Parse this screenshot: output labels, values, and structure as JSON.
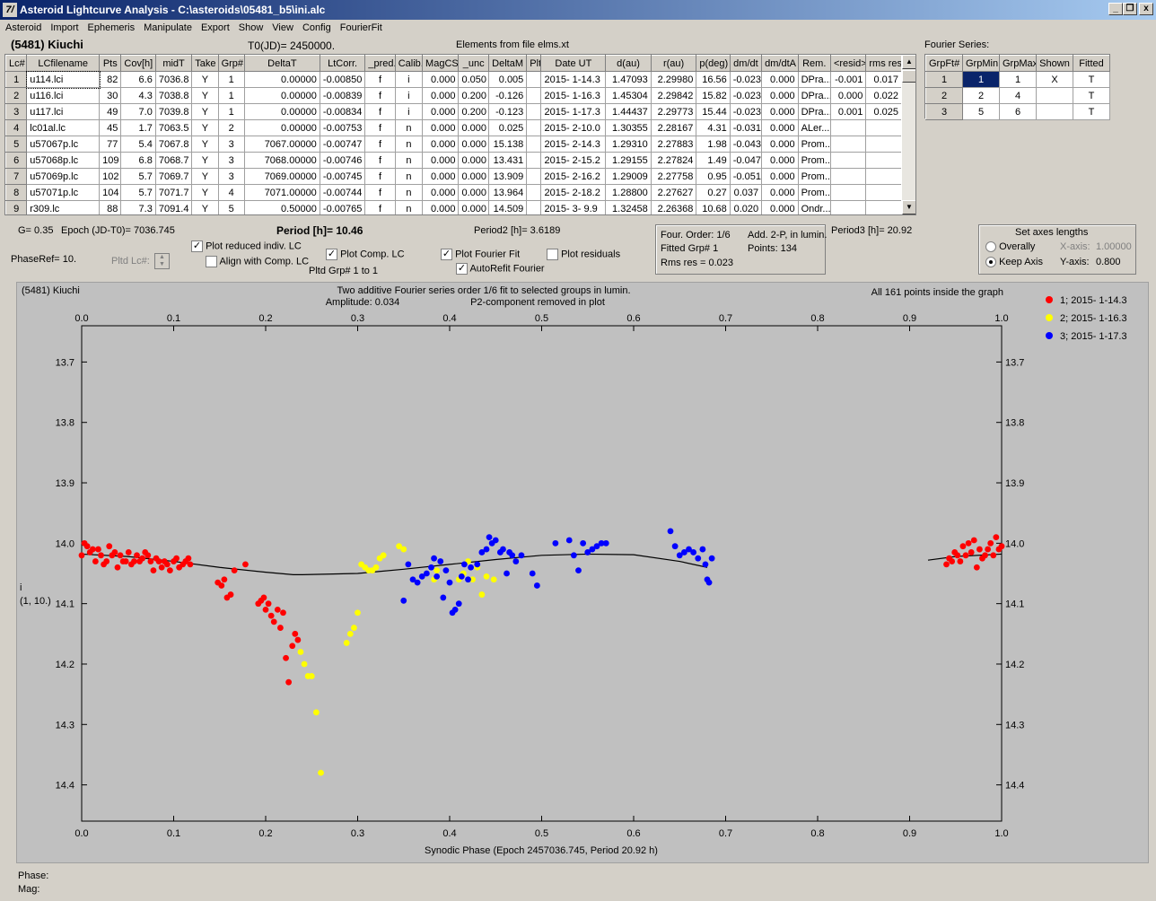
{
  "window": {
    "title": "Asteroid Lightcurve Analysis - C:\\asteroids\\05481_b5\\ini.alc",
    "icon_text": "7/",
    "controls": [
      "_",
      "❐",
      "x"
    ]
  },
  "menu": [
    "Asteroid",
    "Import",
    "Ephemeris",
    "Manipulate",
    "Export",
    "Show",
    "View",
    "Config",
    "FourierFit"
  ],
  "header": {
    "asteroid": "(5481) Kiuchi",
    "t0": "T0(JD)= 2450000.",
    "elements": "Elements from file elms.xt"
  },
  "lc_table": {
    "columns": [
      "Lc#",
      "LCfilename",
      "Pts",
      "Cov[h]",
      "midT",
      "Take",
      "Grp#",
      "DeltaT",
      "LtCorr.",
      "_pred.",
      "Calib.",
      "MagCS",
      "_unc",
      "DeltaM",
      "Plt",
      "Date UT",
      "d(au)",
      "r(au)",
      "p(deg)",
      "dm/dt",
      "dm/dtA",
      "Rem.",
      "<resid>",
      "rms res"
    ],
    "rows": [
      [
        "1",
        "u114.lci",
        "82",
        "6.6",
        "7036.8",
        "Y",
        "1",
        "0.00000",
        "-0.00850",
        "f",
        "i",
        "0.000",
        "0.050",
        "0.005",
        "",
        "2015- 1-14.3",
        "1.47093",
        "2.29980",
        "16.56",
        "-0.023",
        "0.000",
        "DPra...",
        "-0.001",
        "0.017"
      ],
      [
        "2",
        "u116.lci",
        "30",
        "4.3",
        "7038.8",
        "Y",
        "1",
        "0.00000",
        "-0.00839",
        "f",
        "i",
        "0.000",
        "0.200",
        "-0.126",
        "",
        "2015- 1-16.3",
        "1.45304",
        "2.29842",
        "15.82",
        "-0.023",
        "0.000",
        "DPra...",
        "0.000",
        "0.022"
      ],
      [
        "3",
        "u117.lci",
        "49",
        "7.0",
        "7039.8",
        "Y",
        "1",
        "0.00000",
        "-0.00834",
        "f",
        "i",
        "0.000",
        "0.200",
        "-0.123",
        "",
        "2015- 1-17.3",
        "1.44437",
        "2.29773",
        "15.44",
        "-0.023",
        "0.000",
        "DPra...",
        "0.001",
        "0.025"
      ],
      [
        "4",
        "lc01al.lc",
        "45",
        "1.7",
        "7063.5",
        "Y",
        "2",
        "0.00000",
        "-0.00753",
        "f",
        "n",
        "0.000",
        "0.000",
        "0.025",
        "",
        "2015- 2-10.0",
        "1.30355",
        "2.28167",
        "4.31",
        "-0.031",
        "0.000",
        "ALer...",
        "",
        ""
      ],
      [
        "5",
        "u57067p.lc",
        "77",
        "5.4",
        "7067.8",
        "Y",
        "3",
        "7067.00000",
        "-0.00747",
        "f",
        "n",
        "0.000",
        "0.000",
        "15.138",
        "",
        "2015- 2-14.3",
        "1.29310",
        "2.27883",
        "1.98",
        "-0.043",
        "0.000",
        "Prom...",
        "",
        ""
      ],
      [
        "6",
        "u57068p.lc",
        "109",
        "6.8",
        "7068.7",
        "Y",
        "3",
        "7068.00000",
        "-0.00746",
        "f",
        "n",
        "0.000",
        "0.000",
        "13.431",
        "",
        "2015- 2-15.2",
        "1.29155",
        "2.27824",
        "1.49",
        "-0.047",
        "0.000",
        "Prom...",
        "",
        ""
      ],
      [
        "7",
        "u57069p.lc",
        "102",
        "5.7",
        "7069.7",
        "Y",
        "3",
        "7069.00000",
        "-0.00745",
        "f",
        "n",
        "0.000",
        "0.000",
        "13.909",
        "",
        "2015- 2-16.2",
        "1.29009",
        "2.27758",
        "0.95",
        "-0.051",
        "0.000",
        "Prom...",
        "",
        ""
      ],
      [
        "8",
        "u57071p.lc",
        "104",
        "5.7",
        "7071.7",
        "Y",
        "4",
        "7071.00000",
        "-0.00744",
        "f",
        "n",
        "0.000",
        "0.000",
        "13.964",
        "",
        "2015- 2-18.2",
        "1.28800",
        "2.27627",
        "0.27",
        "0.037",
        "0.000",
        "Prom...",
        "",
        ""
      ],
      [
        "9",
        "r309.lc",
        "88",
        "7.3",
        "7091.4",
        "Y",
        "5",
        "0.50000",
        "-0.00765",
        "f",
        "n",
        "0.000",
        "0.000",
        "14.509",
        "",
        "2015- 3- 9.9",
        "1.32458",
        "2.26368",
        "10.68",
        "0.020",
        "0.000",
        "Ondr...",
        "",
        ""
      ]
    ]
  },
  "fourier": {
    "title": "Fourier Series:",
    "columns": [
      "GrpFt#",
      "GrpMin",
      "GrpMax",
      "Shown",
      "Fitted"
    ],
    "rows": [
      [
        "1",
        "1",
        "1",
        "X",
        "T"
      ],
      [
        "2",
        "2",
        "4",
        "",
        "T"
      ],
      [
        "3",
        "5",
        "6",
        "",
        "T"
      ]
    ]
  },
  "params": {
    "g": "G= 0.35",
    "epoch": "Epoch (JD-T0)= 7036.745",
    "period": "Period [h]= 10.46",
    "period2": "Period2 [h]= 3.6189",
    "period3": "Period3 [h]= 20.92",
    "phaseref": "PhaseRef= 10.",
    "pltd_lc": "Pltd Lc#:",
    "plot_reduced": "Plot reduced indiv. LC",
    "align_comp": "Align with Comp. LC",
    "plot_comp": "Plot Comp. LC",
    "pltd_grp": "Pltd Grp#  1  to   1",
    "plot_fourier": "Plot Fourier Fit",
    "autorefit": "AutoRefit Fourier",
    "plot_residuals": "Plot residuals",
    "four_order": "Four. Order:  1/6",
    "add2p": "Add. 2-P, in lumin.",
    "fitted_grp": "Fitted Grp# 1",
    "points": "Points: 134",
    "rms": "Rms res    = 0.023",
    "axes_title": "Set axes lengths",
    "overally": "Overally",
    "keep_axis": "Keep Axis",
    "xaxis_lbl": "X-axis:",
    "xaxis_val": "1.00000",
    "yaxis_lbl": "Y-axis:",
    "yaxis_val": "0.800"
  },
  "status": {
    "phase": "Phase:",
    "mag": "Mag:"
  },
  "chart_data": {
    "type": "scatter",
    "title": "(5481) Kiuchi",
    "subtitle": "Two additive Fourier series order 1/6 fit to selected groups in lumin.",
    "amplitude": "Amplitude: 0.034",
    "p2note": "P2-component removed in plot",
    "inside": "All 161 points inside the graph",
    "xlabel": "Synodic Phase (Epoch 2457036.745, Period 20.92 h)",
    "ylabel": "i",
    "ylabel2": "(1, 10.)",
    "xlim": [
      0,
      1
    ],
    "ylim": [
      14.46,
      13.64
    ],
    "xticks": [
      "0.0",
      "0.1",
      "0.2",
      "0.3",
      "0.4",
      "0.5",
      "0.6",
      "0.7",
      "0.8",
      "0.9",
      "1.0"
    ],
    "yticks": [
      "13.7",
      "13.8",
      "13.9",
      "14.0",
      "14.1",
      "14.2",
      "14.3",
      "14.4"
    ],
    "series": [
      {
        "name": "1; 2015- 1-14.3",
        "color": "#ff0000",
        "points": [
          [
            0.0,
            14.02
          ],
          [
            0.003,
            14.0
          ],
          [
            0.006,
            14.005
          ],
          [
            0.009,
            14.015
          ],
          [
            0.012,
            14.01
          ],
          [
            0.015,
            14.03
          ],
          [
            0.018,
            14.01
          ],
          [
            0.021,
            14.02
          ],
          [
            0.024,
            14.035
          ],
          [
            0.027,
            14.03
          ],
          [
            0.03,
            14.005
          ],
          [
            0.033,
            14.02
          ],
          [
            0.036,
            14.015
          ],
          [
            0.039,
            14.04
          ],
          [
            0.042,
            14.02
          ],
          [
            0.045,
            14.03
          ],
          [
            0.048,
            14.03
          ],
          [
            0.051,
            14.015
          ],
          [
            0.054,
            14.035
          ],
          [
            0.057,
            14.03
          ],
          [
            0.06,
            14.02
          ],
          [
            0.063,
            14.03
          ],
          [
            0.066,
            14.025
          ],
          [
            0.069,
            14.015
          ],
          [
            0.072,
            14.02
          ],
          [
            0.075,
            14.03
          ],
          [
            0.078,
            14.045
          ],
          [
            0.081,
            14.025
          ],
          [
            0.084,
            14.03
          ],
          [
            0.087,
            14.04
          ],
          [
            0.09,
            14.03
          ],
          [
            0.093,
            14.035
          ],
          [
            0.096,
            14.045
          ],
          [
            0.1,
            14.03
          ],
          [
            0.103,
            14.025
          ],
          [
            0.106,
            14.04
          ],
          [
            0.11,
            14.035
          ],
          [
            0.113,
            14.03
          ],
          [
            0.116,
            14.025
          ],
          [
            0.118,
            14.035
          ],
          [
            0.148,
            14.065
          ],
          [
            0.152,
            14.07
          ],
          [
            0.155,
            14.06
          ],
          [
            0.158,
            14.09
          ],
          [
            0.162,
            14.085
          ],
          [
            0.166,
            14.045
          ],
          [
            0.178,
            14.035
          ],
          [
            0.192,
            14.1
          ],
          [
            0.195,
            14.095
          ],
          [
            0.198,
            14.09
          ],
          [
            0.2,
            14.11
          ],
          [
            0.203,
            14.1
          ],
          [
            0.206,
            14.12
          ],
          [
            0.209,
            14.13
          ],
          [
            0.213,
            14.11
          ],
          [
            0.216,
            14.14
          ],
          [
            0.219,
            14.115
          ],
          [
            0.222,
            14.19
          ],
          [
            0.225,
            14.23
          ],
          [
            0.229,
            14.17
          ],
          [
            0.232,
            14.15
          ],
          [
            0.235,
            14.16
          ],
          [
            0.94,
            14.035
          ],
          [
            0.943,
            14.025
          ],
          [
            0.946,
            14.03
          ],
          [
            0.949,
            14.015
          ],
          [
            0.952,
            14.02
          ],
          [
            0.955,
            14.03
          ],
          [
            0.958,
            14.005
          ],
          [
            0.961,
            14.02
          ],
          [
            0.964,
            14.0
          ],
          [
            0.967,
            14.015
          ],
          [
            0.97,
            13.995
          ],
          [
            0.973,
            14.04
          ],
          [
            0.976,
            14.01
          ],
          [
            0.979,
            14.025
          ],
          [
            0.982,
            14.02
          ],
          [
            0.985,
            14.01
          ],
          [
            0.988,
            14.0
          ],
          [
            0.991,
            14.02
          ],
          [
            0.994,
            13.99
          ],
          [
            0.997,
            14.01
          ],
          [
            1.0,
            14.005
          ]
        ]
      },
      {
        "name": "2; 2015- 1-16.3",
        "color": "#ffff00",
        "points": [
          [
            0.238,
            14.18
          ],
          [
            0.242,
            14.2
          ],
          [
            0.246,
            14.22
          ],
          [
            0.25,
            14.22
          ],
          [
            0.255,
            14.28
          ],
          [
            0.26,
            14.38
          ],
          [
            0.288,
            14.165
          ],
          [
            0.292,
            14.15
          ],
          [
            0.296,
            14.14
          ],
          [
            0.3,
            14.115
          ],
          [
            0.304,
            14.035
          ],
          [
            0.308,
            14.04
          ],
          [
            0.312,
            14.045
          ],
          [
            0.316,
            14.045
          ],
          [
            0.32,
            14.04
          ],
          [
            0.324,
            14.025
          ],
          [
            0.328,
            14.02
          ],
          [
            0.345,
            14.005
          ],
          [
            0.35,
            14.01
          ],
          [
            0.383,
            14.06
          ],
          [
            0.386,
            14.045
          ],
          [
            0.41,
            14.06
          ],
          [
            0.415,
            14.05
          ],
          [
            0.42,
            14.03
          ],
          [
            0.425,
            14.06
          ],
          [
            0.43,
            14.04
          ],
          [
            0.435,
            14.085
          ],
          [
            0.44,
            14.055
          ],
          [
            0.448,
            14.06
          ]
        ]
      },
      {
        "name": "3; 2015- 1-17.3",
        "color": "#0000ff",
        "points": [
          [
            0.35,
            14.095
          ],
          [
            0.355,
            14.035
          ],
          [
            0.36,
            14.06
          ],
          [
            0.365,
            14.065
          ],
          [
            0.37,
            14.055
          ],
          [
            0.375,
            14.05
          ],
          [
            0.38,
            14.04
          ],
          [
            0.383,
            14.025
          ],
          [
            0.386,
            14.055
          ],
          [
            0.39,
            14.03
          ],
          [
            0.393,
            14.09
          ],
          [
            0.396,
            14.045
          ],
          [
            0.4,
            14.065
          ],
          [
            0.403,
            14.115
          ],
          [
            0.406,
            14.11
          ],
          [
            0.41,
            14.1
          ],
          [
            0.413,
            14.055
          ],
          [
            0.416,
            14.035
          ],
          [
            0.42,
            14.06
          ],
          [
            0.423,
            14.04
          ],
          [
            0.43,
            14.035
          ],
          [
            0.435,
            14.015
          ],
          [
            0.44,
            14.01
          ],
          [
            0.443,
            13.99
          ],
          [
            0.446,
            14.0
          ],
          [
            0.45,
            13.995
          ],
          [
            0.455,
            14.015
          ],
          [
            0.458,
            14.01
          ],
          [
            0.462,
            14.05
          ],
          [
            0.465,
            14.015
          ],
          [
            0.468,
            14.02
          ],
          [
            0.472,
            14.03
          ],
          [
            0.478,
            14.02
          ],
          [
            0.49,
            14.05
          ],
          [
            0.495,
            14.07
          ],
          [
            0.515,
            14.0
          ],
          [
            0.53,
            13.995
          ],
          [
            0.535,
            14.02
          ],
          [
            0.54,
            14.045
          ],
          [
            0.545,
            14.0
          ],
          [
            0.55,
            14.015
          ],
          [
            0.555,
            14.01
          ],
          [
            0.56,
            14.005
          ],
          [
            0.565,
            14.0
          ],
          [
            0.57,
            14.0
          ],
          [
            0.64,
            13.98
          ],
          [
            0.645,
            14.005
          ],
          [
            0.65,
            14.02
          ],
          [
            0.655,
            14.015
          ],
          [
            0.66,
            14.01
          ],
          [
            0.665,
            14.015
          ],
          [
            0.67,
            14.025
          ],
          [
            0.675,
            14.01
          ],
          [
            0.678,
            14.035
          ],
          [
            0.68,
            14.06
          ],
          [
            0.682,
            14.065
          ],
          [
            0.685,
            14.025
          ]
        ]
      }
    ],
    "fit_curve": [
      [
        0.0,
        14.018
      ],
      [
        0.05,
        14.022
      ],
      [
        0.1,
        14.03
      ],
      [
        0.15,
        14.04
      ],
      [
        0.2,
        14.048
      ],
      [
        0.23,
        14.052
      ],
      [
        0.24,
        14.052
      ],
      [
        0.3,
        14.05
      ],
      [
        0.35,
        14.043
      ],
      [
        0.4,
        14.035
      ],
      [
        0.45,
        14.027
      ],
      [
        0.5,
        14.02
      ],
      [
        0.55,
        14.018
      ],
      [
        0.6,
        14.019
      ],
      [
        0.65,
        14.03
      ],
      [
        0.68,
        14.04
      ],
      [
        0.92,
        14.028
      ],
      [
        0.95,
        14.022
      ],
      [
        1.0,
        14.018
      ]
    ]
  }
}
